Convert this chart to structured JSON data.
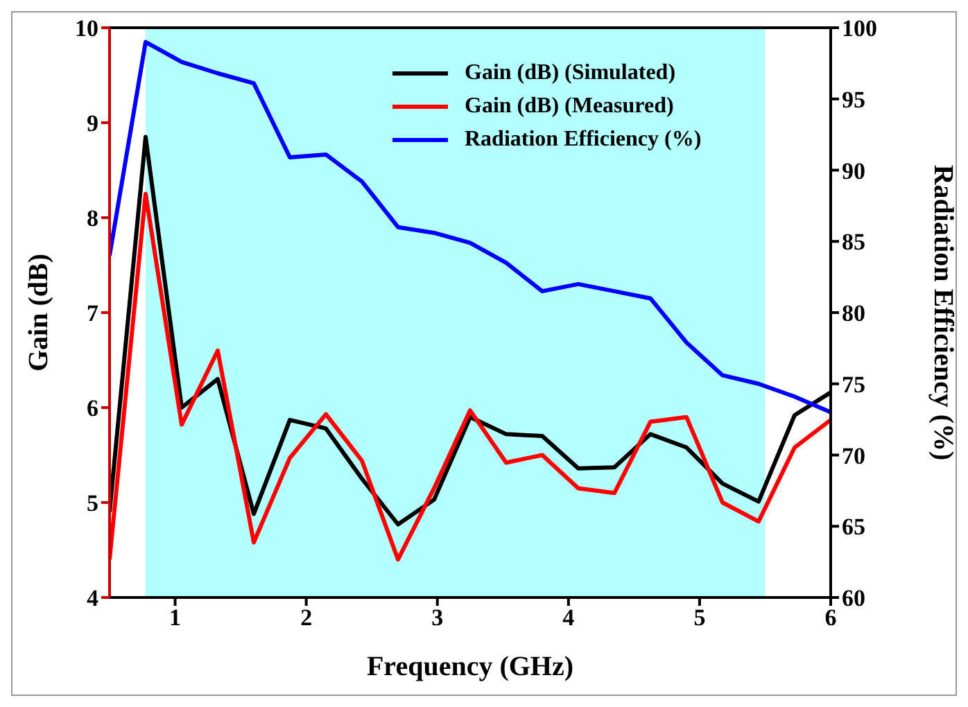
{
  "chart_data": {
    "type": "line",
    "xlabel": "Frequency (GHz)",
    "ylabel": "Gain (dB)",
    "y2label": "Radiation Efficiency (%)",
    "x": [
      0.5,
      0.775,
      1.05,
      1.325,
      1.6,
      1.875,
      2.15,
      2.425,
      2.7,
      2.975,
      3.25,
      3.525,
      3.8,
      4.075,
      4.35,
      4.625,
      4.9,
      5.175,
      5.45,
      5.725,
      6.0
    ],
    "series": [
      {
        "name": "Gain (dB) (Simulated)",
        "color": "#000000",
        "values": [
          4.9,
          8.85,
          6.0,
          6.3,
          4.88,
          5.87,
          5.78,
          5.25,
          4.77,
          5.03,
          5.9,
          5.72,
          5.7,
          5.36,
          5.37,
          5.72,
          5.58,
          5.2,
          5.01,
          5.92,
          6.16
        ]
      },
      {
        "name": "Gain (dB) (Measured)",
        "color": "#ff0000",
        "values": [
          4.4,
          8.25,
          5.82,
          6.6,
          4.58,
          5.47,
          5.93,
          5.44,
          4.4,
          5.15,
          5.97,
          5.42,
          5.5,
          5.15,
          5.1,
          5.85,
          5.9,
          5.0,
          4.8,
          5.58,
          5.87
        ]
      },
      {
        "name": "Radiation Efficiency (%)",
        "color": "#0000ff",
        "axis": "y2",
        "values": [
          84,
          99,
          97.6,
          96.8,
          96.1,
          90.9,
          91.1,
          89.2,
          86,
          85.6,
          84.9,
          83.5,
          81.5,
          82,
          81.5,
          81,
          77.9,
          75.6,
          75,
          74.1,
          73
        ]
      }
    ],
    "xlim": [
      0.5,
      6
    ],
    "xticks": [
      1,
      2,
      3,
      4,
      5,
      6
    ],
    "ylim": [
      4,
      10
    ],
    "yticks": [
      4,
      5,
      6,
      7,
      8,
      9,
      10
    ],
    "y2lim": [
      60,
      100
    ],
    "y2ticks": [
      60,
      65,
      70,
      75,
      80,
      85,
      90,
      95,
      100
    ],
    "bands": [
      {
        "axis": "x",
        "from": 0.775,
        "to": 5.5,
        "color": "#b3ffff"
      }
    ],
    "legend": "top right",
    "marker": "none",
    "line_style": "solid"
  }
}
